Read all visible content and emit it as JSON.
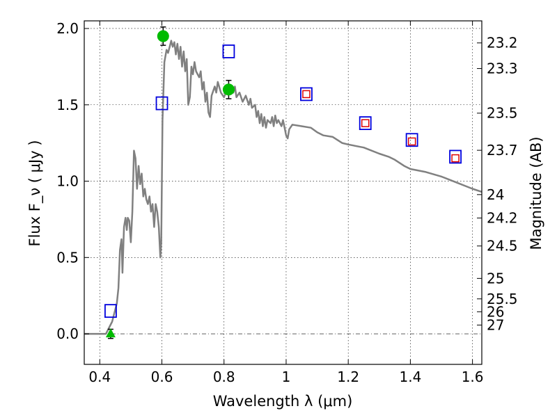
{
  "chart_data": {
    "type": "scatter",
    "title": "",
    "xlabel": "Wavelength  λ (μm)",
    "ylabel": "Flux  F_ν  ( μJy )",
    "y2label": "Magnitude (AB)",
    "xlim": [
      0.35,
      1.63
    ],
    "ylim": [
      -0.2,
      2.05
    ],
    "grid": true,
    "xticks": [
      0.4,
      0.6,
      0.8,
      1.0,
      1.2,
      1.4,
      1.6
    ],
    "xtick_labels": [
      "0.4",
      "0.6",
      "0.8",
      "1",
      "1.2",
      "1.4",
      "1.6"
    ],
    "yticks": [
      0.0,
      0.5,
      1.0,
      1.5,
      2.0
    ],
    "ytick_labels": [
      "0.0",
      "0.5",
      "1.0",
      "1.5",
      "2.0"
    ],
    "mag_ticks": [
      "23.2",
      "23.3",
      "23.5",
      "23.7",
      "24",
      "24.2",
      "24.5",
      "25",
      "25.5",
      "26",
      "27"
    ],
    "series": [
      {
        "style": "line",
        "color": "#808080",
        "points": [
          [
            0.35,
            0.0
          ],
          [
            0.42,
            0.0
          ],
          [
            0.44,
            0.08
          ],
          [
            0.455,
            0.2
          ],
          [
            0.46,
            0.3
          ],
          [
            0.465,
            0.55
          ],
          [
            0.47,
            0.62
          ],
          [
            0.473,
            0.4
          ],
          [
            0.478,
            0.7
          ],
          [
            0.483,
            0.76
          ],
          [
            0.487,
            0.68
          ],
          [
            0.49,
            0.76
          ],
          [
            0.495,
            0.74
          ],
          [
            0.5,
            0.6
          ],
          [
            0.505,
            0.8
          ],
          [
            0.51,
            1.2
          ],
          [
            0.515,
            1.15
          ],
          [
            0.52,
            0.95
          ],
          [
            0.525,
            1.1
          ],
          [
            0.53,
            0.98
          ],
          [
            0.535,
            1.05
          ],
          [
            0.54,
            0.9
          ],
          [
            0.545,
            0.95
          ],
          [
            0.55,
            0.88
          ],
          [
            0.555,
            0.85
          ],
          [
            0.56,
            0.9
          ],
          [
            0.565,
            0.8
          ],
          [
            0.57,
            0.85
          ],
          [
            0.575,
            0.7
          ],
          [
            0.58,
            0.85
          ],
          [
            0.585,
            0.8
          ],
          [
            0.59,
            0.7
          ],
          [
            0.595,
            0.5
          ],
          [
            0.598,
            0.6
          ],
          [
            0.602,
            1.4
          ],
          [
            0.608,
            1.78
          ],
          [
            0.615,
            1.86
          ],
          [
            0.62,
            1.84
          ],
          [
            0.625,
            1.88
          ],
          [
            0.63,
            1.92
          ],
          [
            0.635,
            1.88
          ],
          [
            0.64,
            1.91
          ],
          [
            0.645,
            1.83
          ],
          [
            0.65,
            1.9
          ],
          [
            0.655,
            1.8
          ],
          [
            0.66,
            1.88
          ],
          [
            0.665,
            1.75
          ],
          [
            0.67,
            1.85
          ],
          [
            0.675,
            1.72
          ],
          [
            0.68,
            1.8
          ],
          [
            0.685,
            1.5
          ],
          [
            0.69,
            1.55
          ],
          [
            0.695,
            1.75
          ],
          [
            0.7,
            1.7
          ],
          [
            0.705,
            1.78
          ],
          [
            0.71,
            1.72
          ],
          [
            0.72,
            1.68
          ],
          [
            0.725,
            1.72
          ],
          [
            0.73,
            1.6
          ],
          [
            0.735,
            1.65
          ],
          [
            0.74,
            1.52
          ],
          [
            0.745,
            1.58
          ],
          [
            0.75,
            1.45
          ],
          [
            0.755,
            1.42
          ],
          [
            0.76,
            1.56
          ],
          [
            0.77,
            1.62
          ],
          [
            0.775,
            1.58
          ],
          [
            0.78,
            1.65
          ],
          [
            0.79,
            1.58
          ],
          [
            0.8,
            1.55
          ],
          [
            0.81,
            1.6
          ],
          [
            0.82,
            1.62
          ],
          [
            0.83,
            1.58
          ],
          [
            0.835,
            1.62
          ],
          [
            0.84,
            1.55
          ],
          [
            0.85,
            1.58
          ],
          [
            0.86,
            1.52
          ],
          [
            0.87,
            1.56
          ],
          [
            0.88,
            1.5
          ],
          [
            0.885,
            1.54
          ],
          [
            0.89,
            1.48
          ],
          [
            0.9,
            1.5
          ],
          [
            0.905,
            1.42
          ],
          [
            0.91,
            1.46
          ],
          [
            0.915,
            1.38
          ],
          [
            0.92,
            1.44
          ],
          [
            0.925,
            1.36
          ],
          [
            0.93,
            1.42
          ],
          [
            0.935,
            1.35
          ],
          [
            0.94,
            1.4
          ],
          [
            0.95,
            1.38
          ],
          [
            0.955,
            1.42
          ],
          [
            0.96,
            1.36
          ],
          [
            0.965,
            1.43
          ],
          [
            0.97,
            1.38
          ],
          [
            0.975,
            1.4
          ],
          [
            0.98,
            1.38
          ],
          [
            0.985,
            1.36
          ],
          [
            0.99,
            1.4
          ],
          [
            1.0,
            1.3
          ],
          [
            1.005,
            1.28
          ],
          [
            1.01,
            1.34
          ],
          [
            1.02,
            1.37
          ],
          [
            1.05,
            1.36
          ],
          [
            1.08,
            1.35
          ],
          [
            1.1,
            1.32
          ],
          [
            1.12,
            1.3
          ],
          [
            1.15,
            1.29
          ],
          [
            1.18,
            1.25
          ],
          [
            1.2,
            1.24
          ],
          [
            1.25,
            1.22
          ],
          [
            1.3,
            1.18
          ],
          [
            1.33,
            1.16
          ],
          [
            1.35,
            1.14
          ],
          [
            1.38,
            1.1
          ],
          [
            1.4,
            1.08
          ],
          [
            1.45,
            1.06
          ],
          [
            1.5,
            1.03
          ],
          [
            1.55,
            0.99
          ],
          [
            1.6,
            0.95
          ],
          [
            1.63,
            0.93
          ]
        ]
      },
      {
        "style": "circle",
        "color": "#00bb00",
        "points": [
          [
            0.604,
            1.95
          ],
          [
            0.815,
            1.6
          ]
        ],
        "yerr": [
          0.06,
          0.06
        ]
      },
      {
        "style": "triangle",
        "color": "#00bb00",
        "points": [
          [
            0.435,
            0.0
          ]
        ],
        "yerr": [
          0.03
        ]
      },
      {
        "style": "open-square",
        "color": "#0000dd",
        "points": [
          [
            0.435,
            0.15
          ],
          [
            0.6,
            1.51
          ],
          [
            0.815,
            1.85
          ],
          [
            1.065,
            1.57
          ],
          [
            1.255,
            1.38
          ],
          [
            1.405,
            1.27
          ],
          [
            1.545,
            1.16
          ]
        ]
      },
      {
        "style": "open-square-small",
        "color": "#dd0000",
        "points": [
          [
            1.065,
            1.57
          ],
          [
            1.255,
            1.38
          ],
          [
            1.405,
            1.26
          ],
          [
            1.545,
            1.15
          ]
        ]
      }
    ]
  }
}
